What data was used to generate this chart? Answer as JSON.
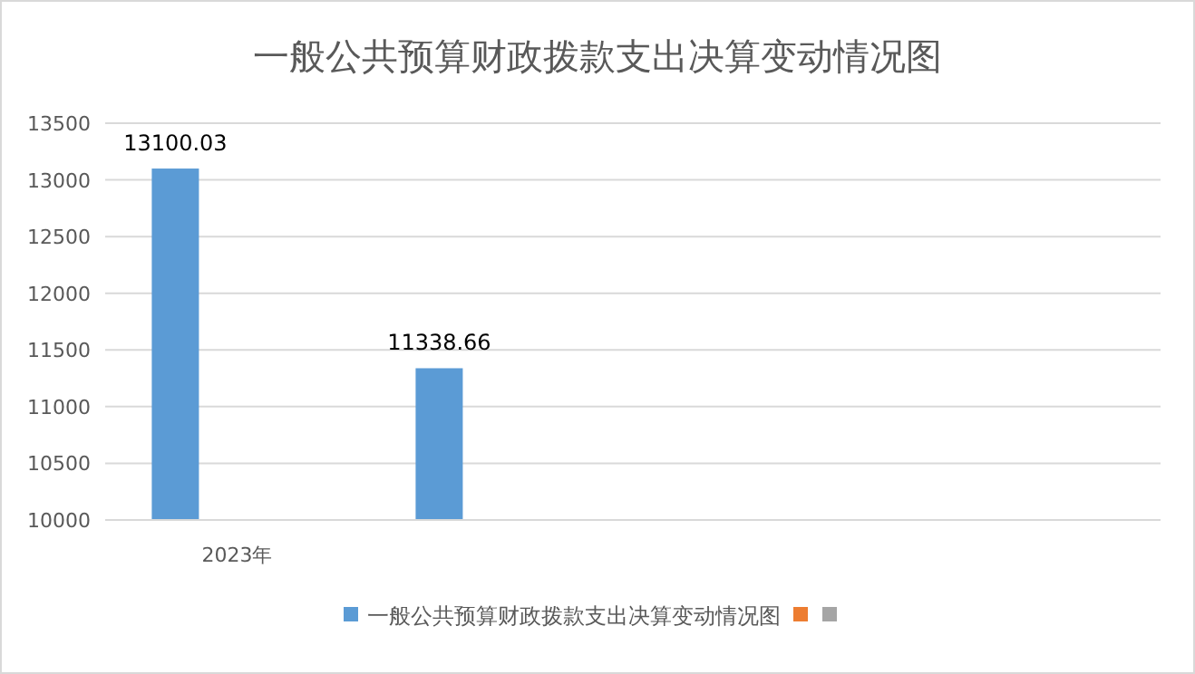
{
  "chart_data": {
    "type": "bar",
    "title": "一般公共预算财政拨款支出决算变动情况图",
    "categories": [
      "2023年",
      null,
      null,
      null
    ],
    "series": [
      {
        "name": "一般公共预算财政拨款支出决算变动情况图",
        "color": "#5b9bd5",
        "values": [
          13100.03,
          11338.66,
          null,
          null
        ]
      },
      {
        "color": "#ed7d31",
        "values": [
          null,
          null,
          null,
          null
        ]
      },
      {
        "color": "#a5a5a5",
        "values": [
          null,
          null,
          null,
          null
        ]
      }
    ],
    "ylim": [
      10000,
      13500
    ],
    "yticks": [
      10000,
      10500,
      11000,
      11500,
      12000,
      12500,
      13000,
      13500
    ],
    "grid": "y",
    "legend": "bottom",
    "data_labels": true
  }
}
